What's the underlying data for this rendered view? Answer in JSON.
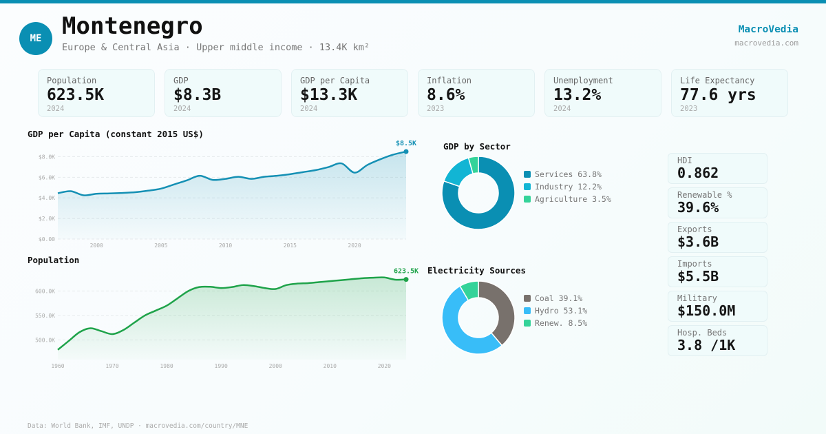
{
  "header": {
    "avatar_code": "ME",
    "country": "Montenegro",
    "subtitle": "Europe & Central Asia · Upper middle income · 13.4K km²",
    "brand": "MacroVedia",
    "brand_url": "macrovedia.com"
  },
  "kpis": [
    {
      "label": "Population",
      "value": "623.5K",
      "year": "2024"
    },
    {
      "label": "GDP",
      "value": "$8.3B",
      "year": "2024"
    },
    {
      "label": "GDP per Capita",
      "value": "$13.3K",
      "year": "2024"
    },
    {
      "label": "Inflation",
      "value": "8.6%",
      "year": "2023"
    },
    {
      "label": "Unemployment",
      "value": "13.2%",
      "year": "2024"
    },
    {
      "label": "Life Expectancy",
      "value": "77.6 yrs",
      "year": "2023"
    }
  ],
  "side_stats": [
    {
      "label": "HDI",
      "value": "0.862"
    },
    {
      "label": "Renewable %",
      "value": "39.6%"
    },
    {
      "label": "Exports",
      "value": "$3.6B"
    },
    {
      "label": "Imports",
      "value": "$5.5B"
    },
    {
      "label": "Military",
      "value": "$150.0M"
    },
    {
      "label": "Hosp. Beds",
      "value": "3.8 /1K"
    }
  ],
  "colors": {
    "accent": "#0a8fb3",
    "gdp_line": "#1590b4",
    "pop_line": "#1fa34a"
  },
  "footer": "Data: World Bank, IMF, UNDP · macrovedia.com/country/MNE",
  "chart_data": [
    {
      "id": "gdp_pc",
      "type": "area",
      "title": "GDP per Capita (constant 2015 US$)",
      "xlabel": "",
      "ylabel": "",
      "x": [
        1997,
        1998,
        1999,
        2000,
        2001,
        2002,
        2003,
        2004,
        2005,
        2006,
        2007,
        2008,
        2009,
        2010,
        2011,
        2012,
        2013,
        2014,
        2015,
        2016,
        2017,
        2018,
        2019,
        2020,
        2021,
        2022,
        2023,
        2024
      ],
      "values": [
        4450,
        4650,
        4250,
        4400,
        4430,
        4480,
        4550,
        4700,
        4900,
        5300,
        5700,
        6150,
        5750,
        5850,
        6050,
        5850,
        6050,
        6150,
        6300,
        6500,
        6700,
        7000,
        7350,
        6450,
        7200,
        7750,
        8200,
        8500
      ],
      "ylim": [
        0,
        8500
      ],
      "yticks": [
        0,
        2000,
        4000,
        6000,
        8000
      ],
      "ytick_labels": [
        "$0.00",
        "$2.0K",
        "$4.0K",
        "$6.0K",
        "$8.0K"
      ],
      "xticks": [
        2000,
        2005,
        2010,
        2015,
        2020
      ],
      "xtick_labels": [
        "2000",
        "2005",
        "2010",
        "2015",
        "2020"
      ],
      "end_label": "$8.5K",
      "grid": true
    },
    {
      "id": "population",
      "type": "area",
      "title": "Population",
      "xlabel": "",
      "ylabel": "",
      "x": [
        1960,
        1962,
        1964,
        1966,
        1968,
        1970,
        1972,
        1974,
        1976,
        1978,
        1980,
        1982,
        1984,
        1986,
        1988,
        1990,
        1992,
        1994,
        1996,
        1998,
        2000,
        2002,
        2004,
        2006,
        2008,
        2010,
        2012,
        2014,
        2016,
        2018,
        2020,
        2022,
        2024
      ],
      "values": [
        480000,
        498000,
        516000,
        524000,
        518000,
        512000,
        520000,
        535000,
        550000,
        560000,
        570000,
        585000,
        600000,
        608000,
        608500,
        606000,
        608000,
        612000,
        610000,
        606000,
        604000,
        612000,
        615000,
        616000,
        618000,
        620000,
        622000,
        624000,
        626000,
        627000,
        627500,
        623000,
        623500
      ],
      "ylim": [
        460000,
        630000
      ],
      "yticks": [
        500000,
        550000,
        600000
      ],
      "ytick_labels": [
        "500.0K",
        "550.0K",
        "600.0K"
      ],
      "xticks": [
        1960,
        1970,
        1980,
        1990,
        2000,
        2010,
        2020
      ],
      "xtick_labels": [
        "1960",
        "1970",
        "1980",
        "1990",
        "2000",
        "2010",
        "2020"
      ],
      "end_label": "623.5K",
      "grid": true
    },
    {
      "id": "gdp_sector",
      "type": "pie",
      "title": "GDP by Sector",
      "categories": [
        "Services",
        "Industry",
        "Agriculture"
      ],
      "values": [
        63.8,
        12.2,
        3.5
      ],
      "legend_labels": [
        "Services 63.8%",
        "Industry 12.2%",
        "Agriculture 3.5%"
      ],
      "colors": [
        "#0a8fb3",
        "#12b5d4",
        "#34d399"
      ],
      "donut": true,
      "legend": "right"
    },
    {
      "id": "electricity",
      "type": "pie",
      "title": "Electricity Sources",
      "categories": [
        "Coal",
        "Hydro",
        "Renew."
      ],
      "values": [
        39.1,
        53.1,
        8.5
      ],
      "legend_labels": [
        "Coal 39.1%",
        "Hydro 53.1%",
        "Renew. 8.5%"
      ],
      "colors": [
        "#78716c",
        "#38bdf8",
        "#34d399"
      ],
      "donut": true,
      "legend": "right"
    }
  ]
}
